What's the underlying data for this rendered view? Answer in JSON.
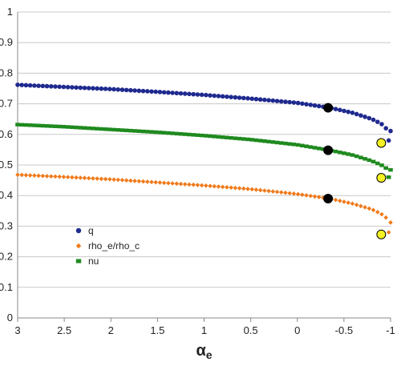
{
  "chart_data": {
    "type": "scatter",
    "title": "",
    "xlabel": "α",
    "xlabel_subscript": "e",
    "ylabel": "",
    "x_reversed": true,
    "xlim": [
      3,
      -1
    ],
    "ylim": [
      0,
      1
    ],
    "x_ticks": [
      "3",
      "2.5",
      "2",
      "1.5",
      "1",
      "0.5",
      "0",
      "-0.5",
      "-1"
    ],
    "y_ticks": [
      "0",
      "0.1",
      "0.2",
      "0.3",
      "0.4",
      "0.5",
      "0.6",
      "0.7",
      "0.8",
      "0.9",
      "1"
    ],
    "grid": "horizontal",
    "legend_position": "bottom-left",
    "series": [
      {
        "name": "q",
        "color": "#1f2a8f",
        "marker": "circle",
        "curve": [
          [
            3,
            0.762
          ],
          [
            2.5,
            0.755
          ],
          [
            2,
            0.748
          ],
          [
            1.5,
            0.739
          ],
          [
            1,
            0.729
          ],
          [
            0.5,
            0.717
          ],
          [
            0,
            0.703
          ],
          [
            -0.35,
            0.687
          ],
          [
            -0.6,
            0.67
          ],
          [
            -0.8,
            0.65
          ],
          [
            -0.9,
            0.635
          ],
          [
            -0.95,
            0.62
          ]
        ],
        "end_points": [
          [
            -0.98,
            0.58
          ],
          [
            -1.0,
            0.611
          ]
        ]
      },
      {
        "name": "rho_e/rho_c",
        "color": "#f07a1a",
        "marker": "diamond",
        "curve": [
          [
            3,
            0.468
          ],
          [
            2.5,
            0.461
          ],
          [
            2,
            0.453
          ],
          [
            1.5,
            0.443
          ],
          [
            1,
            0.433
          ],
          [
            0.5,
            0.421
          ],
          [
            0,
            0.405
          ],
          [
            -0.35,
            0.39
          ],
          [
            -0.6,
            0.373
          ],
          [
            -0.8,
            0.355
          ],
          [
            -0.9,
            0.34
          ],
          [
            -0.95,
            0.328
          ]
        ],
        "end_points": [
          [
            -0.98,
            0.28
          ],
          [
            -1.0,
            0.312
          ]
        ]
      },
      {
        "name": "nu",
        "color": "#1f8a1f",
        "marker": "square",
        "curve": [
          [
            3,
            0.632
          ],
          [
            2.5,
            0.625
          ],
          [
            2,
            0.616
          ],
          [
            1.5,
            0.607
          ],
          [
            1,
            0.596
          ],
          [
            0.5,
            0.583
          ],
          [
            0,
            0.566
          ],
          [
            -0.35,
            0.548
          ],
          [
            -0.6,
            0.532
          ],
          [
            -0.8,
            0.513
          ],
          [
            -0.9,
            0.5
          ],
          [
            -0.95,
            0.49
          ]
        ],
        "end_points": [
          [
            -0.98,
            0.46
          ],
          [
            -1.0,
            0.484
          ]
        ]
      }
    ],
    "highlight_points": [
      {
        "label": "black",
        "color": "#000000",
        "points": [
          [
            -0.33,
            0.687
          ],
          [
            -0.33,
            0.548
          ],
          [
            -0.33,
            0.39
          ]
        ]
      },
      {
        "label": "yellow",
        "color": "#f5f224",
        "points": [
          [
            -0.9,
            0.572
          ],
          [
            -0.9,
            0.458
          ],
          [
            -0.9,
            0.273
          ]
        ]
      }
    ]
  }
}
